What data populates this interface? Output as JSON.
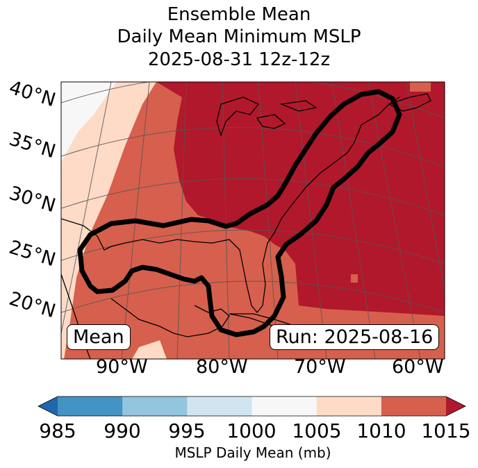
{
  "title": {
    "line1": "Ensemble Mean",
    "line2": "Daily Mean Minimum MSLP",
    "line3": "2025-08-31 12z-12z"
  },
  "latitude_labels": [
    "40°N",
    "35°N",
    "30°N",
    "25°N",
    "20°N"
  ],
  "longitude_labels": [
    "90°W",
    "80°W",
    "70°W",
    "60°W"
  ],
  "annotations": {
    "left_box": "Mean",
    "right_box": "Run: 2025-08-16"
  },
  "colorbar": {
    "ticks": [
      "985",
      "990",
      "995",
      "1000",
      "1005",
      "1010",
      "1015"
    ],
    "label": "MSLP Daily Mean (mb)",
    "colors": [
      "#2166ac",
      "#4393c3",
      "#92c5de",
      "#d1e5f0",
      "#f7f7f7",
      "#fddbc7",
      "#d6604d",
      "#b2182b"
    ]
  },
  "map_colors": {
    "band_1000_1005": "#f7f7f7",
    "band_1005_1010": "#fddbc7",
    "band_1010_1015": "#d6604d",
    "band_above_1015": "#b2182b",
    "contour": "#000000"
  }
}
